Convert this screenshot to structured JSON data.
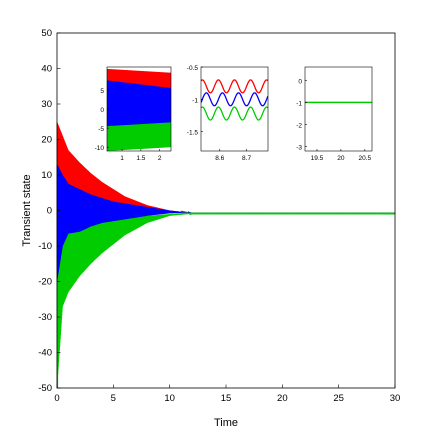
{
  "chart_data": [
    {
      "type": "line",
      "title": "",
      "xlabel": "Time",
      "ylabel": "Transient state",
      "xlim": [
        0,
        30
      ],
      "ylim": [
        -50,
        50
      ],
      "xticks": [
        0,
        5,
        10,
        15,
        20,
        25,
        30
      ],
      "yticks": [
        -50,
        -40,
        -30,
        -20,
        -10,
        0,
        10,
        20,
        30,
        40,
        50
      ],
      "grid": false,
      "series": [
        {
          "color": "#ff0000",
          "x": [
            0,
            0.5,
            1,
            2,
            3,
            4,
            5,
            6,
            8,
            10,
            12,
            30
          ],
          "upper": [
            25,
            21,
            17,
            13.5,
            10.5,
            8,
            6,
            4,
            1.5,
            0,
            -0.7,
            -0.7
          ],
          "lower": [
            -5,
            -3,
            0,
            2.5,
            3,
            2.5,
            2,
            1.5,
            0.5,
            -0.3,
            -0.7,
            -0.7
          ]
        },
        {
          "color": "#0000ff",
          "x": [
            0,
            0.5,
            1,
            2,
            3,
            4,
            5,
            6,
            8,
            10,
            12,
            30
          ],
          "upper": [
            13,
            10,
            7.5,
            6,
            4.5,
            3.5,
            2.5,
            2,
            1,
            0,
            -0.7,
            -0.7
          ],
          "lower": [
            -20,
            -10,
            -6.5,
            -6,
            -4.5,
            -3.5,
            -3,
            -2.5,
            -1.5,
            -0.8,
            -0.7,
            -0.7
          ]
        },
        {
          "color": "#00cc00",
          "x": [
            0,
            0.5,
            1,
            2,
            3,
            4,
            5,
            6,
            8,
            10,
            12,
            30
          ],
          "upper": [
            -2,
            -3,
            -4,
            -4.5,
            -3.5,
            -3,
            -2.5,
            -2,
            -1.5,
            -1,
            -0.8,
            -0.8
          ],
          "lower": [
            -50,
            -27,
            -23,
            -18.5,
            -15,
            -12,
            -9.5,
            -7,
            -3.5,
            -1.5,
            -0.9,
            -0.9
          ]
        }
      ]
    },
    {
      "type": "line",
      "title": "",
      "xlim": [
        0.6,
        2.3
      ],
      "ylim": [
        -11,
        11
      ],
      "xticks": [
        1,
        1.5,
        2
      ],
      "yticks": [
        -10,
        -5,
        0,
        5
      ],
      "series": [
        {
          "color": "#ff0000",
          "x": [
            0.6,
            2.3
          ],
          "upper": [
            10.5,
            9.5
          ],
          "lower": [
            3,
            5
          ]
        },
        {
          "color": "#0000ff",
          "x": [
            0.6,
            2.3
          ],
          "upper": [
            7.5,
            5.5
          ],
          "lower": [
            -7.5,
            -5
          ]
        },
        {
          "color": "#00cc00",
          "x": [
            0.6,
            2.3
          ],
          "upper": [
            -4.5,
            -3.5
          ],
          "lower": [
            -11,
            -10
          ]
        }
      ]
    },
    {
      "type": "line",
      "title": "",
      "xlim": [
        8.53,
        8.78
      ],
      "ylim": [
        -1.8,
        -0.5
      ],
      "xticks": [
        8.6,
        8.7
      ],
      "yticks": [
        -1.5,
        -1,
        -0.5
      ],
      "series": [
        {
          "color": "#ff0000",
          "center": -0.8,
          "amplitude": 0.1,
          "period": 0.06,
          "phase": 0
        },
        {
          "color": "#0000ff",
          "center": -1.0,
          "amplitude": 0.1,
          "period": 0.06,
          "phase": 0.015
        },
        {
          "color": "#00cc00",
          "center": -1.22,
          "amplitude": 0.1,
          "period": 0.06,
          "phase": 0
        }
      ]
    },
    {
      "type": "line",
      "title": "",
      "xlim": [
        19.25,
        20.65
      ],
      "ylim": [
        -3.2,
        0.6
      ],
      "xticks": [
        19.5,
        20,
        20.5
      ],
      "yticks": [
        -3,
        -2,
        -1,
        0
      ],
      "series": [
        {
          "color": "#00cc00",
          "x": [
            19.25,
            20.65
          ],
          "y": [
            -1,
            -1
          ]
        }
      ]
    }
  ]
}
